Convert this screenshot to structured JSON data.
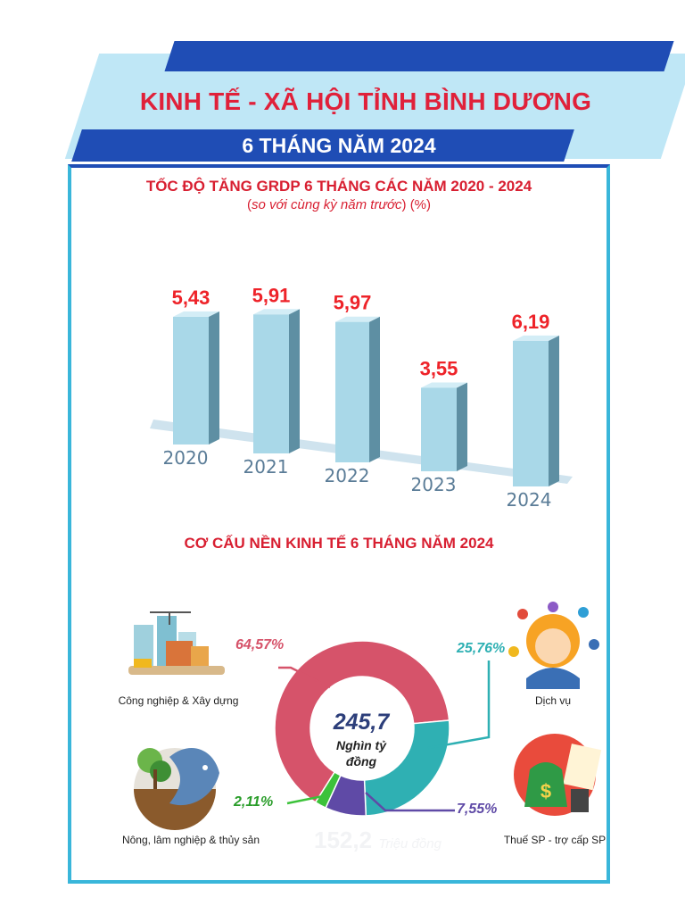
{
  "header": {
    "title": "KINH TẾ - XÃ HỘI TỈNH BÌNH DƯƠNG",
    "subtitle": "6 THÁNG NĂM 2024"
  },
  "chart_data": [
    {
      "type": "bar",
      "title": "TỐC ĐỘ TĂNG GRDP 6 THÁNG CÁC NĂM 2020 - 2024",
      "subtitle_italic": "so với cùng kỳ năm trước",
      "subtitle_unit": "(%)",
      "categories": [
        "2020",
        "2021",
        "2022",
        "2023",
        "2024"
      ],
      "values": [
        5.43,
        5.91,
        5.97,
        3.55,
        6.19
      ],
      "value_labels": [
        "5,43",
        "5,91",
        "5,97",
        "3,55",
        "6,19"
      ],
      "ylim": [
        0,
        7
      ],
      "grid": false,
      "colors": {
        "bar_front": "#a9d8e8",
        "bar_side": "#5e8fa3",
        "label": "#ee2329",
        "axis_text": "#5a7c97"
      }
    },
    {
      "type": "pie",
      "title": "CƠ CẤU NỀN KINH TẾ 6 THÁNG NĂM 2024",
      "center_value": "245,7",
      "center_unit_line1": "Nghìn tỷ",
      "center_unit_line2": "đồng",
      "ghost_text": "152,2",
      "ghost_unit": "Triệu đồng",
      "slices": [
        {
          "name": "Công nghiệp & Xây dựng",
          "value": 64.57,
          "label": "64,57%",
          "color": "#d6536a"
        },
        {
          "name": "Dịch vụ",
          "value": 25.76,
          "label": "25,76%",
          "color": "#2fb0b3"
        },
        {
          "name": "Thuế SP - trợ cấp SP",
          "value": 7.55,
          "label": "7,55%",
          "color": "#5f4aa6"
        },
        {
          "name": "Nông, lâm nghiệp & thủy sản",
          "value": 2.11,
          "label": "2,11%",
          "color": "#3cc23a"
        }
      ],
      "icons": [
        "construction-icon",
        "service-woman-icon",
        "tax-money-icon",
        "agriculture-fish-icon"
      ]
    }
  ]
}
